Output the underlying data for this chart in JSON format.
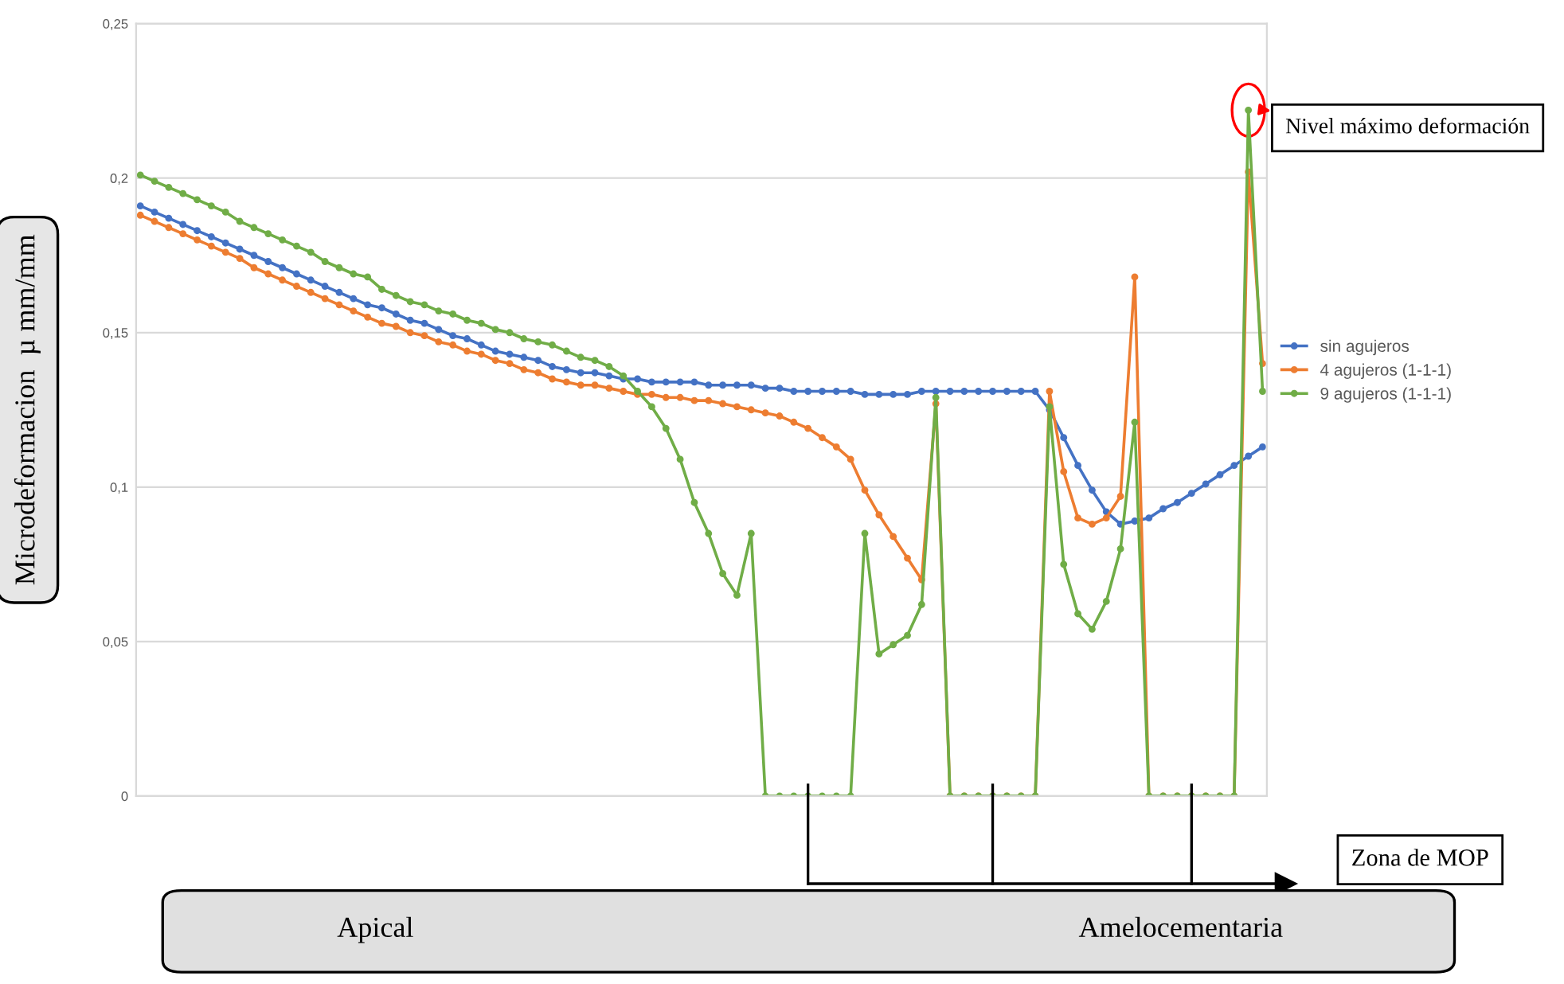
{
  "chart_data": {
    "type": "line",
    "ylabel": "Microdeformacion  µ mm/mm",
    "ylim": [
      0,
      0.25
    ],
    "yticks": [
      {
        "value": 0,
        "label": "0"
      },
      {
        "value": 0.05,
        "label": "0,05"
      },
      {
        "value": 0.1,
        "label": "0,1"
      },
      {
        "value": 0.15,
        "label": "0,15"
      },
      {
        "value": 0.2,
        "label": "0,2"
      },
      {
        "value": 0.25,
        "label": "0,25"
      }
    ],
    "categories": [
      null,
      null,
      null,
      null,
      null,
      null,
      null,
      null,
      null,
      null,
      null,
      null,
      null,
      null,
      null,
      null,
      null,
      null,
      null,
      null,
      null,
      null,
      null,
      null,
      null,
      null,
      null,
      null,
      null,
      null,
      null,
      null,
      null,
      null,
      null,
      null,
      null,
      null,
      null,
      null,
      null,
      null,
      null,
      null,
      null,
      null,
      null,
      null,
      null,
      null,
      null,
      null,
      null,
      null,
      null,
      null,
      null,
      null,
      null,
      null,
      null,
      null,
      null,
      null,
      null,
      null,
      null,
      null,
      null,
      null,
      null,
      null,
      null,
      null,
      null,
      null,
      null,
      null,
      null,
      null
    ],
    "grid": "y",
    "legend": "right",
    "marker": "circle",
    "line_style": "solid",
    "annotations": [
      "Nivel máximo deformación",
      "Zona de MOP",
      "Apical",
      "Amelocementaria"
    ],
    "series": [
      {
        "name": "sin agujeros",
        "color": "#4472c4",
        "values": [
          0.191,
          0.189,
          0.187,
          0.185,
          0.183,
          0.181,
          0.179,
          0.177,
          0.175,
          0.173,
          0.171,
          0.169,
          0.167,
          0.165,
          0.163,
          0.161,
          0.159,
          0.158,
          0.156,
          0.154,
          0.153,
          0.151,
          0.149,
          0.148,
          0.146,
          0.144,
          0.143,
          0.142,
          0.141,
          0.139,
          0.138,
          0.137,
          0.137,
          0.136,
          0.135,
          0.135,
          0.134,
          0.134,
          0.134,
          0.134,
          0.133,
          0.133,
          0.133,
          0.133,
          0.132,
          0.132,
          0.131,
          0.131,
          0.131,
          0.131,
          0.131,
          0.13,
          0.13,
          0.13,
          0.13,
          0.131,
          0.131,
          0.131,
          0.131,
          0.131,
          0.131,
          0.131,
          0.131,
          0.131,
          0.125,
          0.116,
          0.107,
          0.099,
          0.092,
          0.088,
          0.089,
          0.09,
          0.093,
          0.095,
          0.098,
          0.101,
          0.104,
          0.107,
          0.11,
          0.113
        ]
      },
      {
        "name": "4 agujeros (1-1-1)",
        "color": "#ed7d31",
        "values": [
          0.188,
          0.186,
          0.184,
          0.182,
          0.18,
          0.178,
          0.176,
          0.174,
          0.171,
          0.169,
          0.167,
          0.165,
          0.163,
          0.161,
          0.159,
          0.157,
          0.155,
          0.153,
          0.152,
          0.15,
          0.149,
          0.147,
          0.146,
          0.144,
          0.143,
          0.141,
          0.14,
          0.138,
          0.137,
          0.135,
          0.134,
          0.133,
          0.133,
          0.132,
          0.131,
          0.13,
          0.13,
          0.129,
          0.129,
          0.128,
          0.128,
          0.127,
          0.126,
          0.125,
          0.124,
          0.123,
          0.121,
          0.119,
          0.116,
          0.113,
          0.109,
          0.099,
          0.091,
          0.084,
          0.077,
          0.07,
          0.127,
          0,
          0,
          0,
          0,
          0,
          0,
          0,
          0.131,
          0.105,
          0.09,
          0.088,
          0.09,
          0.097,
          0.168,
          0,
          0,
          0,
          0,
          0,
          0,
          0,
          0.202,
          0.14
        ]
      },
      {
        "name": "9 agujeros (1-1-1)",
        "color": "#70ad47",
        "values": [
          0.201,
          0.199,
          0.197,
          0.195,
          0.193,
          0.191,
          0.189,
          0.186,
          0.184,
          0.182,
          0.18,
          0.178,
          0.176,
          0.173,
          0.171,
          0.169,
          0.168,
          0.164,
          0.162,
          0.16,
          0.159,
          0.157,
          0.156,
          0.154,
          0.153,
          0.151,
          0.15,
          0.148,
          0.147,
          0.146,
          0.144,
          0.142,
          0.141,
          0.139,
          0.136,
          0.131,
          0.126,
          0.119,
          0.109,
          0.095,
          0.085,
          0.072,
          0.065,
          0.085,
          0,
          0,
          0,
          0,
          0,
          0,
          0,
          0.085,
          0.046,
          0.049,
          0.052,
          0.062,
          0.129,
          0,
          0,
          0,
          0,
          0,
          0,
          0,
          0.126,
          0.075,
          0.059,
          0.054,
          0.063,
          0.08,
          0.121,
          0,
          0,
          0,
          0,
          0,
          0,
          0,
          0.222,
          0.131
        ]
      }
    ]
  }
}
